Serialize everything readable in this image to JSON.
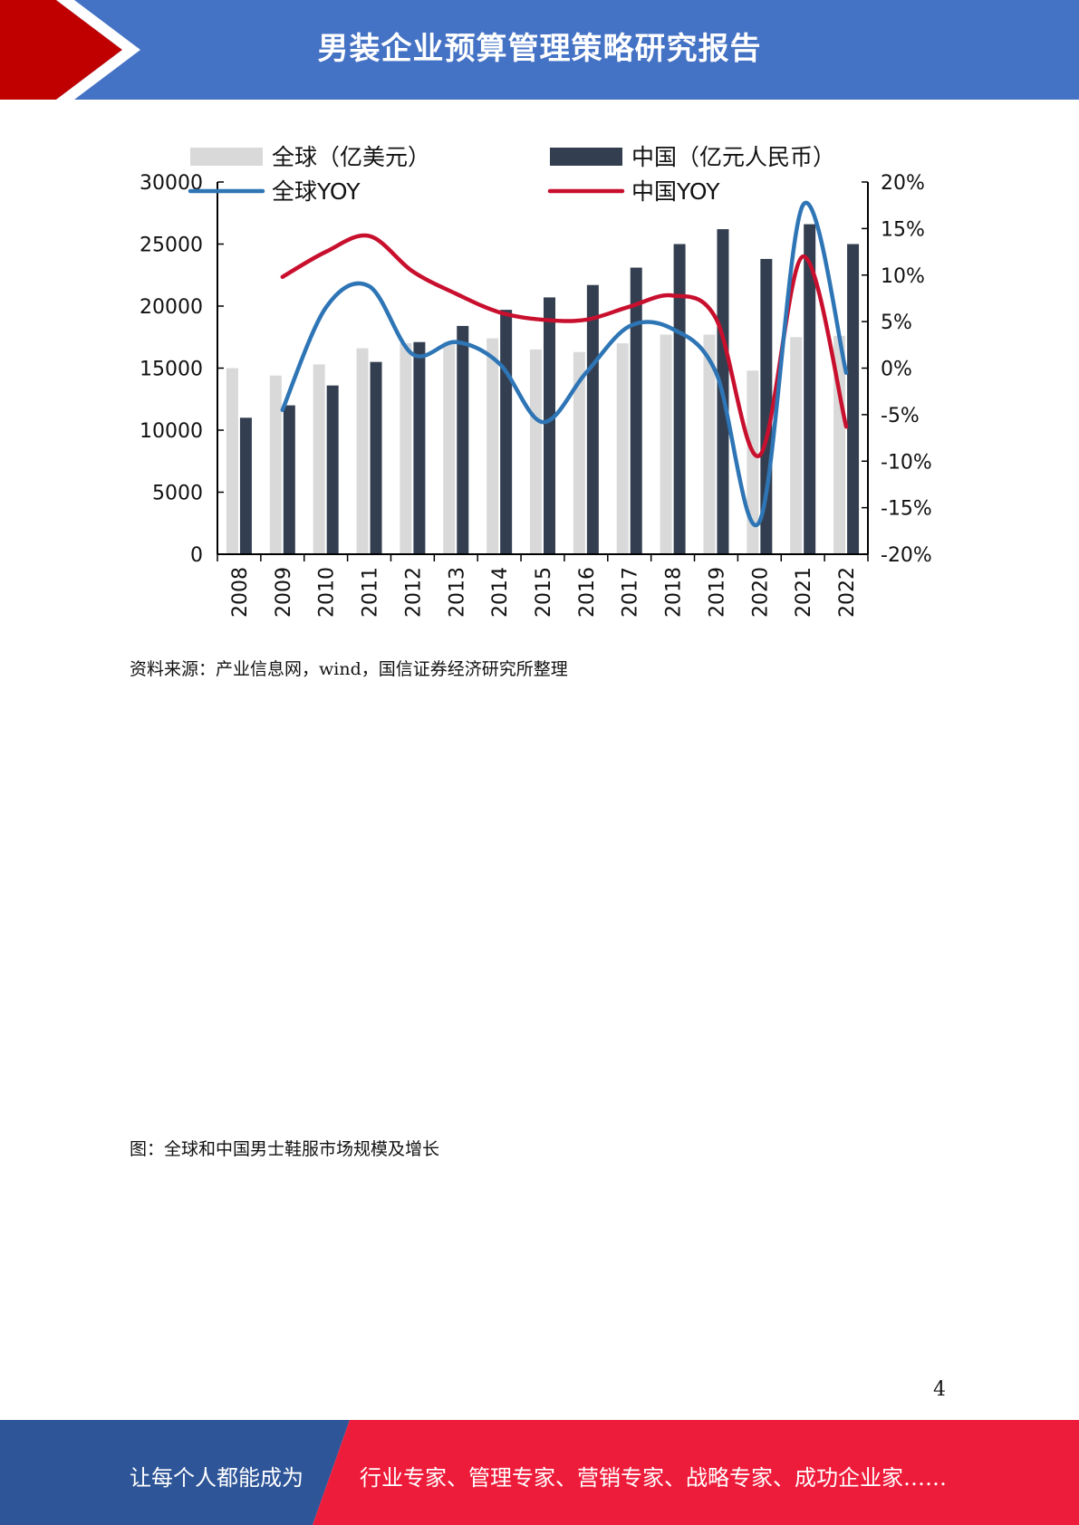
{
  "header": {
    "title": "男装企业预算管理策略研究报告",
    "colors": {
      "band": "#4472c4",
      "accent": "#c00000"
    }
  },
  "chart_data": {
    "type": "bar",
    "title": "",
    "categories": [
      "2008",
      "2009",
      "2010",
      "2011",
      "2012",
      "2013",
      "2014",
      "2015",
      "2016",
      "2017",
      "2018",
      "2019",
      "2020",
      "2021",
      "2022"
    ],
    "ylim_left": [
      0,
      30000
    ],
    "ylim_right": [
      -20,
      20
    ],
    "y_ticks_left": [
      "0",
      "5000",
      "10000",
      "15000",
      "20000",
      "25000",
      "30000"
    ],
    "y_ticks_right": [
      "-20%",
      "-15%",
      "-10%",
      "-5%",
      "0%",
      "5%",
      "10%",
      "15%",
      "20%"
    ],
    "legend_position": "top",
    "grid": false,
    "series": [
      {
        "name": "全球（亿美元）",
        "kind": "bar",
        "axis": "left",
        "color": "#d9d9d9",
        "values": [
          15000,
          14400,
          15300,
          16600,
          17000,
          17100,
          17400,
          16500,
          16300,
          17000,
          17700,
          17700,
          14800,
          17500,
          17600
        ]
      },
      {
        "name": "中国（亿元人民币）",
        "kind": "bar",
        "axis": "left",
        "color": "#333f50",
        "values": [
          11000,
          12000,
          13600,
          15500,
          17100,
          18400,
          19700,
          20700,
          21700,
          23100,
          25000,
          26200,
          23800,
          26600,
          25000
        ]
      },
      {
        "name": "全球YOY",
        "kind": "line",
        "axis": "right",
        "color": "#2e75b6",
        "values": [
          null,
          -4.5,
          6.5,
          8.8,
          1.5,
          2.8,
          0.5,
          -5.8,
          -0.5,
          4.5,
          4.2,
          -0.5,
          -16.5,
          17.5,
          -0.5
        ]
      },
      {
        "name": "中国YOY",
        "kind": "line",
        "axis": "right",
        "color": "#c8102e",
        "values": [
          null,
          9.8,
          12.5,
          14.2,
          10.4,
          8,
          6,
          5.2,
          5.2,
          6.6,
          7.8,
          5.3,
          -9.4,
          12,
          -6.3
        ]
      }
    ]
  },
  "captions": {
    "source": "资料来源：产业信息网，wind，国信证券经济研究所整理",
    "figure": "图：全球和中国男士鞋服市场规模及增长"
  },
  "page_number": "4",
  "footer": {
    "left_text": "让每个人都能成为",
    "right_text": "行业专家、管理专家、营销专家、战略专家、成功企业家……",
    "colors": {
      "left": "#2e5597",
      "right": "#ee1c3b"
    }
  }
}
